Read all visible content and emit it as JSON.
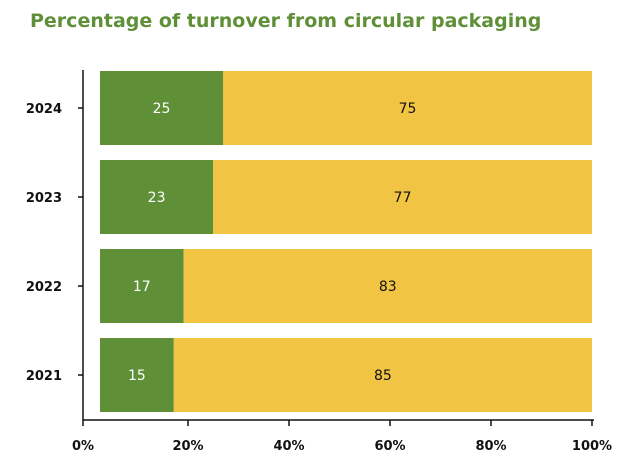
{
  "colors": {
    "title": "#5f9038",
    "segment_a": "#5f9038",
    "segment_b": "#f2c443",
    "label_on_a": "#ffffff",
    "label_on_b": "#111111",
    "axis": "#111111"
  },
  "chart_data": {
    "type": "bar",
    "orientation": "horizontal",
    "stacked": true,
    "title": "Percentage of turnover from circular packaging",
    "categories": [
      "2024",
      "2023",
      "2022",
      "2021"
    ],
    "series": [
      {
        "values": [
          25,
          23,
          17,
          15
        ],
        "color": "#5f9038"
      },
      {
        "values": [
          75,
          77,
          83,
          85
        ],
        "color": "#f2c443"
      }
    ],
    "x_ticks": [
      "0%",
      "20%",
      "40%",
      "60%",
      "80%",
      "100%"
    ],
    "xlim": [
      0,
      100
    ],
    "grid": false,
    "legend": "none"
  }
}
